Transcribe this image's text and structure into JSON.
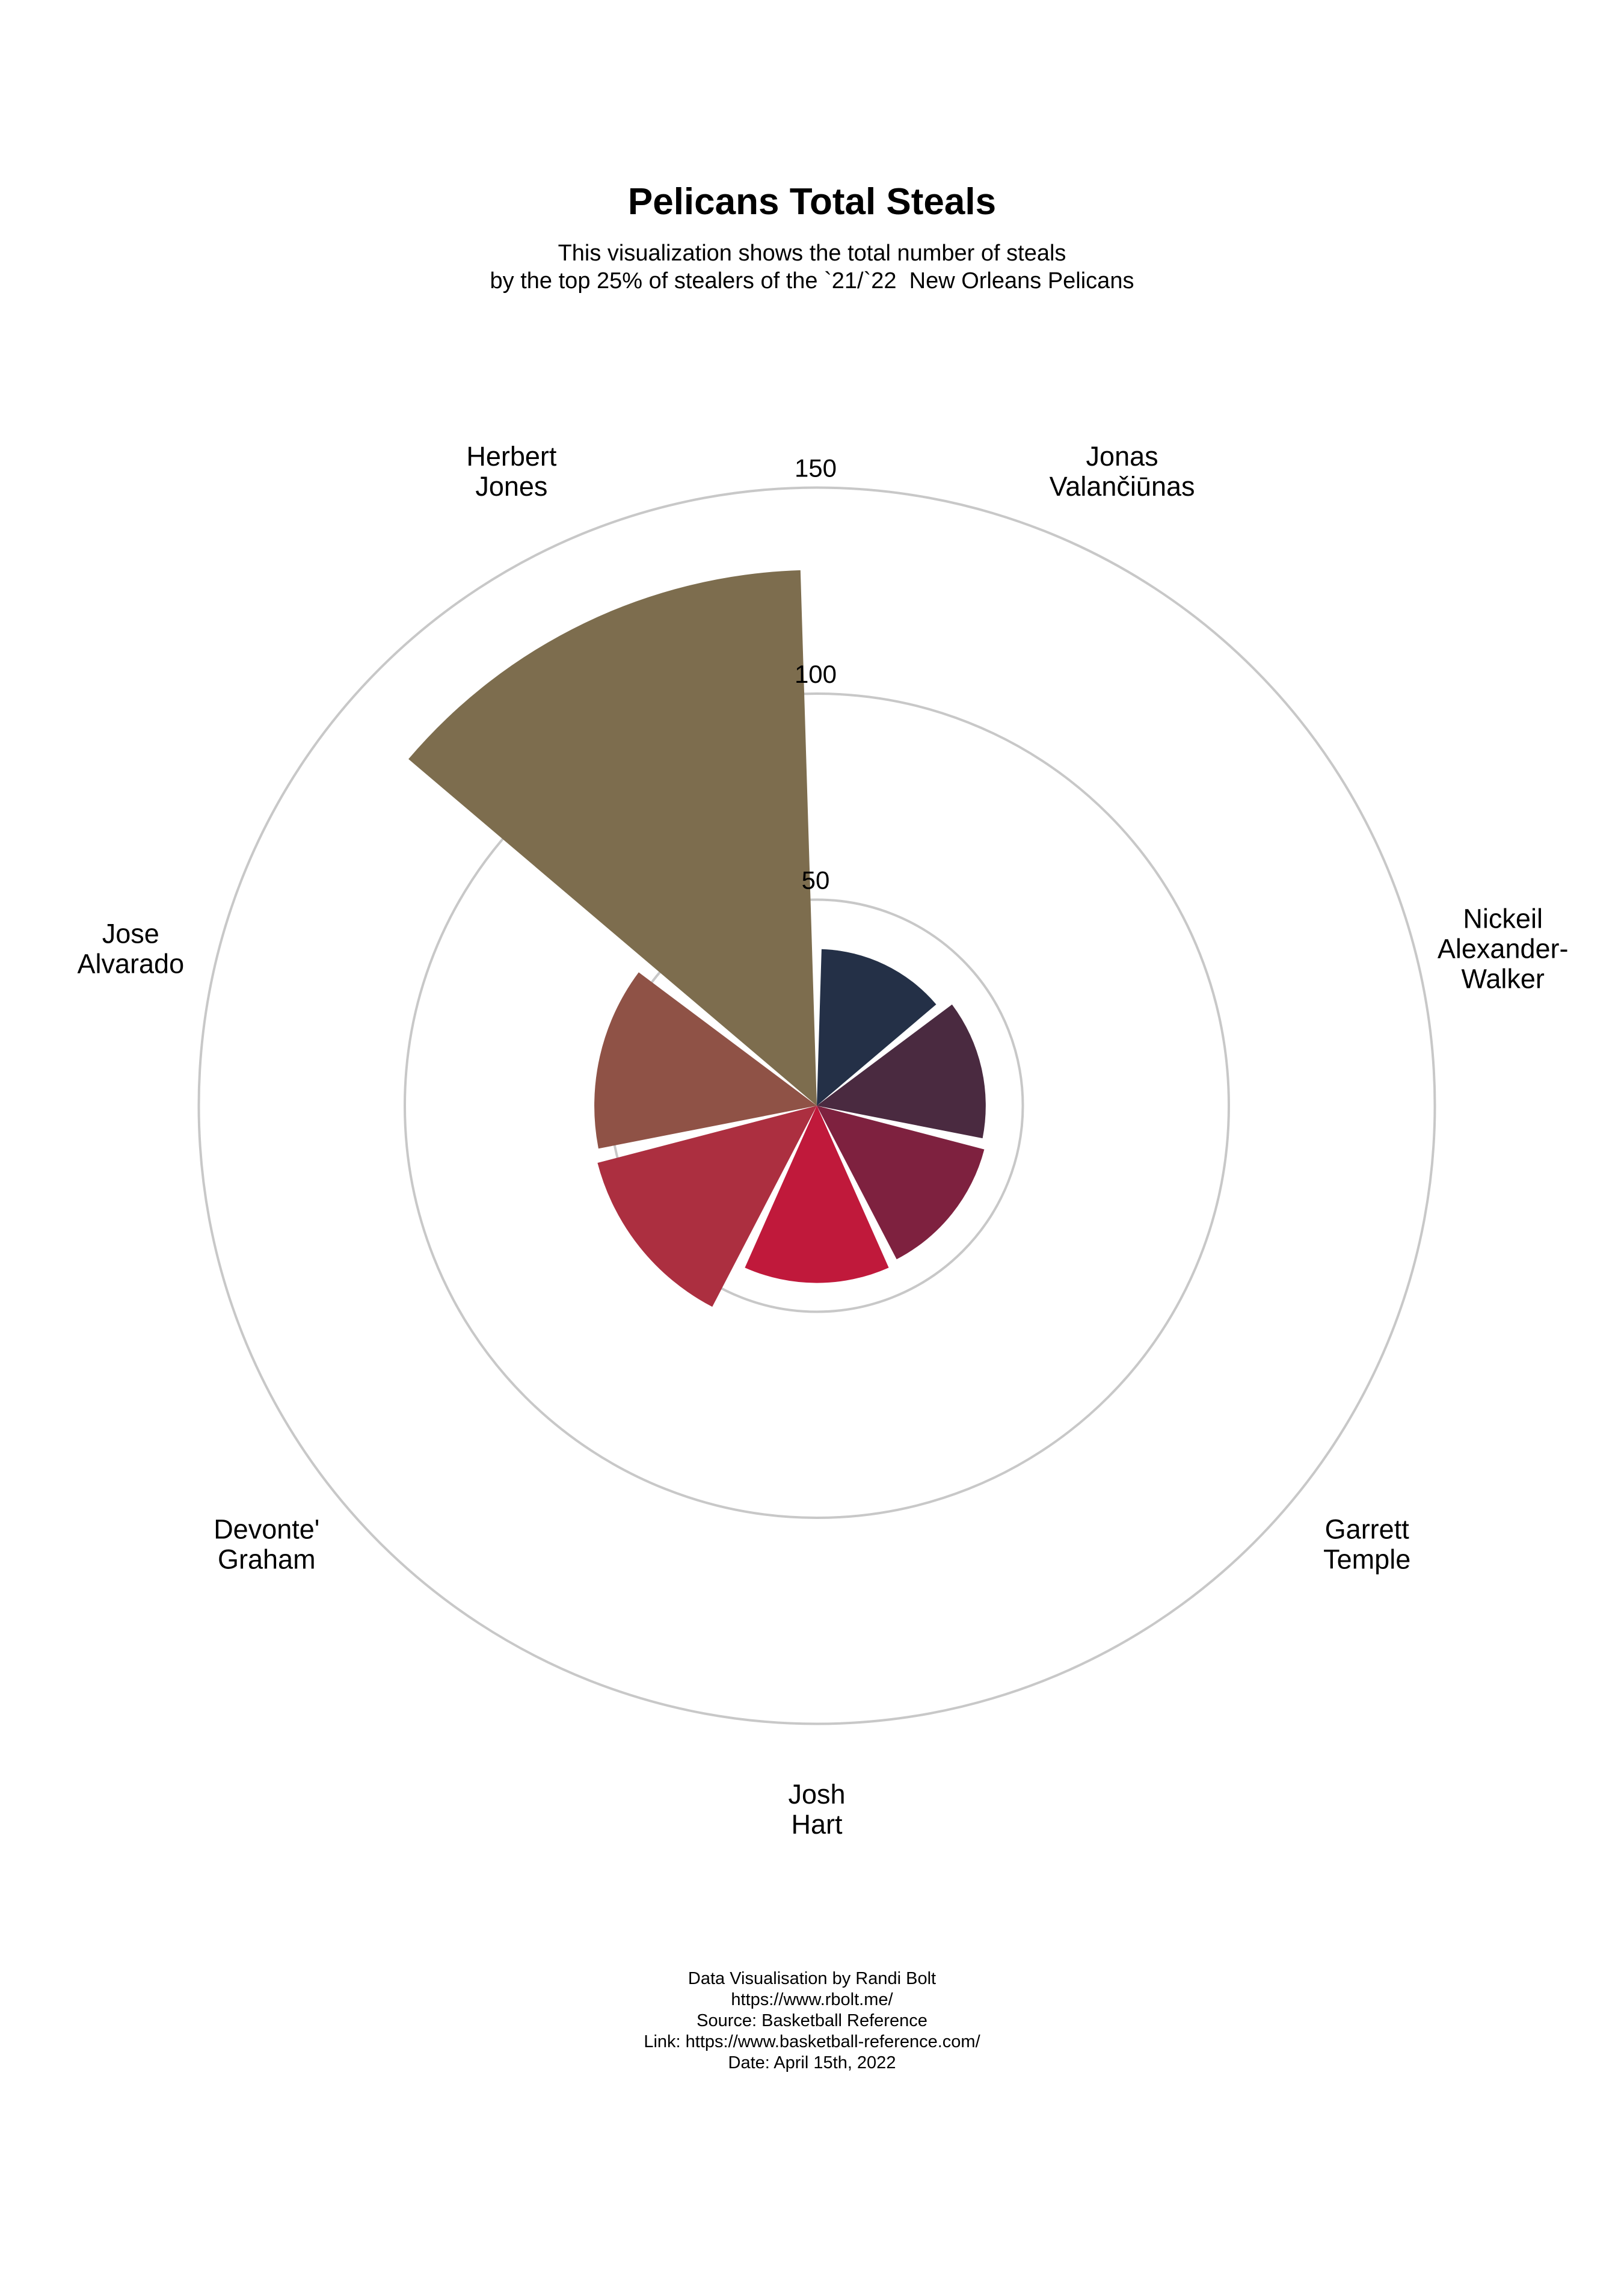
{
  "header": {
    "title": "Pelicans Total Steals",
    "subtitle_line1": "This visualization shows the total number of steals",
    "subtitle_line2": "by the top 25% of stealers of the `21/`22  New Orleans Pelicans"
  },
  "chart_data": {
    "type": "bar",
    "polar": true,
    "title": "Pelicans Total Steals",
    "categories": [
      "Jonas Valančiūnas",
      "Nickeil Alexander-Walker",
      "Garrett Temple",
      "Josh Hart",
      "Devonte' Graham",
      "Jose Alvarado",
      "Herbert Jones"
    ],
    "category_lines": [
      [
        "Jonas",
        "Valančiūnas"
      ],
      [
        "Nickeil",
        "Alexander-",
        "Walker"
      ],
      [
        "Garrett",
        "Temple"
      ],
      [
        "Josh",
        "Hart"
      ],
      [
        "Devonte'",
        "Graham"
      ],
      [
        "Jose",
        "Alvarado"
      ],
      [
        "Herbert",
        "Jones"
      ]
    ],
    "values": [
      38,
      41,
      42,
      43,
      55,
      54,
      130
    ],
    "colors": [
      "#243047",
      "#4a2a40",
      "#7e213f",
      "#c0193b",
      "#ac2f40",
      "#8f5246",
      "#7d6d4e"
    ],
    "radial_ticks": [
      50,
      100,
      150
    ],
    "rlim": [
      0,
      150
    ],
    "grid": true,
    "legend": "none"
  },
  "footer": {
    "line1": "Data Visualisation by Randi Bolt",
    "line2": "https://www.rbolt.me/",
    "line3": "Source: Basketball Reference",
    "line4": "Link: https://www.basketball-reference.com/",
    "line5": "Date: April 15th, 2022"
  }
}
